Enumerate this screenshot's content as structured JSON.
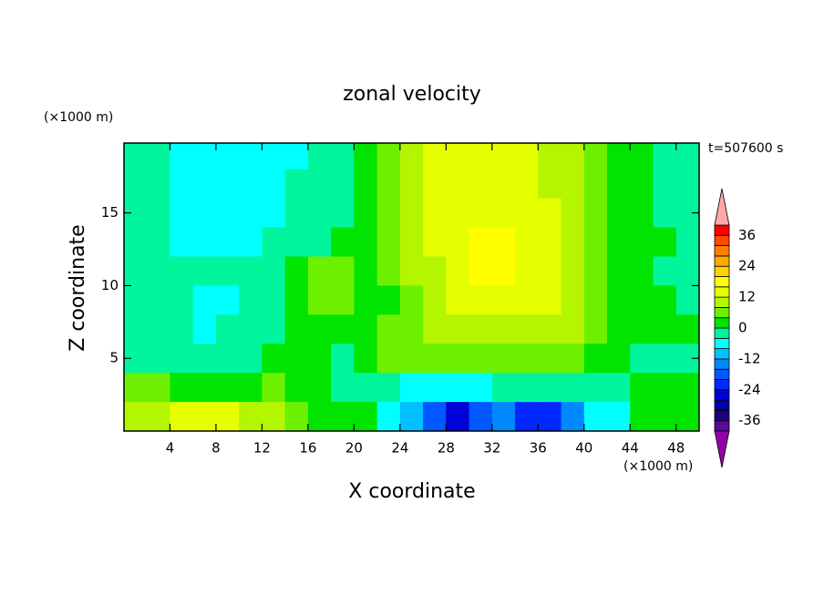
{
  "chart_data": {
    "type": "contour",
    "title": "zonal velocity",
    "x_label": "X coordinate",
    "y_label": "Z coordinate",
    "x_unit": "(×1000 m)",
    "y_unit": "(×1000 m)",
    "annotation": "t=507600 s",
    "xlim": [
      0,
      50
    ],
    "ylim": [
      0,
      19.8
    ],
    "xticks": [
      4,
      8,
      12,
      16,
      20,
      24,
      28,
      32,
      36,
      40,
      44,
      48
    ],
    "yticks": [
      5,
      10,
      15
    ],
    "x": [
      1,
      3,
      5,
      7,
      9,
      11,
      13,
      15,
      17,
      19,
      21,
      23,
      25,
      27,
      29,
      31,
      33,
      35,
      37,
      39,
      41,
      43,
      45,
      47,
      49
    ],
    "y": [
      19,
      17,
      15,
      13,
      11,
      9,
      7,
      5,
      3,
      1
    ],
    "z": [
      [
        -2,
        -2,
        -6,
        -6,
        -6,
        -6,
        -6,
        -6,
        -2,
        -2,
        2,
        6,
        10,
        14,
        14,
        14,
        14,
        14,
        10,
        10,
        6,
        2,
        2,
        -2,
        -2
      ],
      [
        -2,
        -2,
        -6,
        -6,
        -6,
        -6,
        -6,
        -2,
        -2,
        -2,
        2,
        6,
        10,
        14,
        14,
        14,
        14,
        14,
        10,
        10,
        6,
        2,
        2,
        -2,
        -2
      ],
      [
        -2,
        -2,
        -6,
        -6,
        -6,
        -6,
        -6,
        -2,
        -2,
        -2,
        2,
        6,
        10,
        14,
        14,
        14,
        14,
        14,
        14,
        10,
        6,
        2,
        2,
        -2,
        -2
      ],
      [
        -2,
        -2,
        -6,
        -6,
        -6,
        -6,
        -2,
        -2,
        -2,
        2,
        2,
        6,
        10,
        14,
        14,
        18,
        18,
        14,
        14,
        10,
        6,
        2,
        2,
        2,
        -2
      ],
      [
        -2,
        -2,
        -2,
        -2,
        -2,
        -2,
        -2,
        2,
        6,
        6,
        2,
        6,
        10,
        10,
        14,
        18,
        18,
        14,
        14,
        10,
        6,
        2,
        2,
        -2,
        -2
      ],
      [
        -2,
        -2,
        -2,
        -6,
        -6,
        -2,
        -2,
        2,
        6,
        6,
        2,
        2,
        6,
        10,
        14,
        14,
        14,
        14,
        14,
        10,
        6,
        2,
        2,
        2,
        -2
      ],
      [
        -2,
        -2,
        -2,
        -6,
        -2,
        -2,
        -2,
        2,
        2,
        2,
        2,
        6,
        6,
        10,
        10,
        10,
        10,
        10,
        10,
        10,
        6,
        2,
        2,
        2,
        2
      ],
      [
        -2,
        -2,
        -2,
        -2,
        -2,
        -2,
        2,
        2,
        2,
        -2,
        2,
        6,
        6,
        6,
        6,
        6,
        6,
        6,
        6,
        6,
        2,
        2,
        -2,
        -2,
        -2
      ],
      [
        6,
        6,
        2,
        2,
        2,
        2,
        6,
        2,
        2,
        -2,
        -2,
        -2,
        -6,
        -6,
        -6,
        -6,
        -2,
        -2,
        -2,
        -2,
        -2,
        -2,
        2,
        2,
        2
      ],
      [
        10,
        10,
        14,
        14,
        14,
        10,
        10,
        6,
        2,
        2,
        2,
        -6,
        -10,
        -18,
        -26,
        -18,
        -14,
        -22,
        -22,
        -14,
        -6,
        -6,
        2,
        2,
        2
      ]
    ],
    "levels": [
      -40,
      -36,
      -32,
      -28,
      -24,
      -20,
      -16,
      -12,
      -8,
      -4,
      0,
      4,
      8,
      12,
      16,
      20,
      24,
      28,
      32,
      36,
      40
    ],
    "colors": [
      "#5a0a96",
      "#1e0080",
      "#0000a8",
      "#0000d8",
      "#0028ff",
      "#0058ff",
      "#0088ff",
      "#00c0ff",
      "#00ffff",
      "#00f59c",
      "#00e400",
      "#6cf000",
      "#b4f500",
      "#e6ff00",
      "#ffff00",
      "#ffd200",
      "#ffaa00",
      "#ff8000",
      "#ff4800",
      "#ff0000"
    ],
    "under_color": "#9400a8",
    "over_color": "#ffaaaa",
    "cbar_ticks": [
      -36,
      -24,
      -12,
      0,
      12,
      24,
      36
    ]
  }
}
